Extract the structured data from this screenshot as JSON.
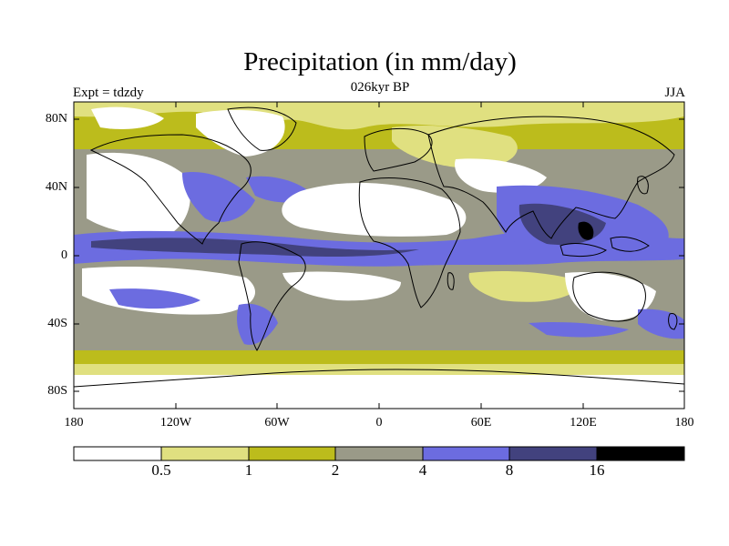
{
  "title": "Precipitation (in mm/day)",
  "subtitle": "026kyr BP",
  "left_label": "Expt = tdzdy",
  "right_label": "JJA",
  "map": {
    "projection": "cylindrical equidistant",
    "lon_range": [
      -180,
      180
    ],
    "lat_range": [
      -90,
      90
    ],
    "lat_ticks": [
      "80N",
      "40N",
      "0",
      "40S",
      "80S"
    ],
    "lon_ticks": [
      "180",
      "120W",
      "60W",
      "0",
      "60E",
      "120E",
      "180"
    ]
  },
  "colorbar": {
    "colors": [
      "#ffffff",
      "#e0e080",
      "#bcbc1c",
      "#9a9a88",
      "#6c6ce0",
      "#42427e",
      "#000000"
    ],
    "labels": [
      "0.5",
      "1",
      "2",
      "4",
      "8",
      "16"
    ]
  }
}
